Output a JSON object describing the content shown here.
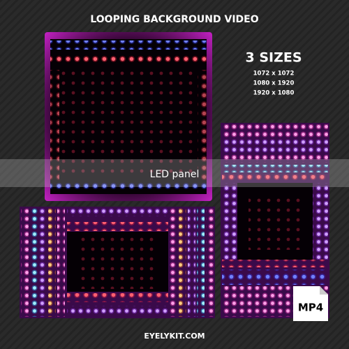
{
  "header": {
    "title": "LOOPING BACKGROUND VIDEO"
  },
  "sizes": {
    "heading": "3 SIZES",
    "list": [
      "1072 x 1072",
      "1080 x 1920",
      "1920 x 1080"
    ]
  },
  "label": "LED panel",
  "badge": "MP4",
  "footer": "EYELYKIT.COM"
}
